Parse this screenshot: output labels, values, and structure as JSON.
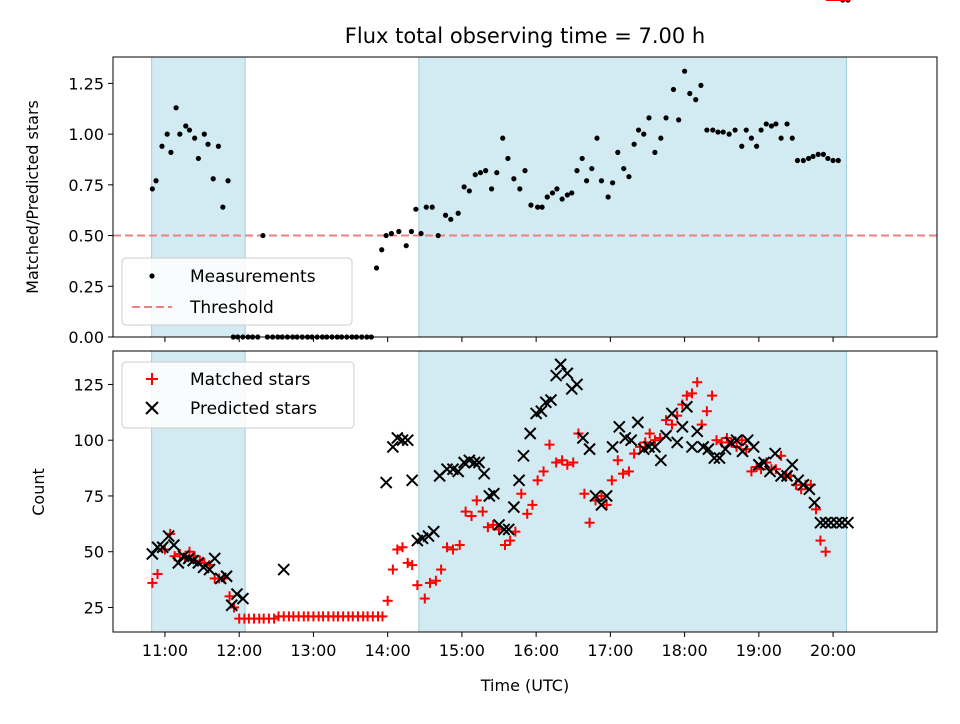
{
  "chart_data": [
    {
      "type": "scatter",
      "title": "Flux total observing time = 7.00 h",
      "ylabel": "Matched/Predicted stars",
      "xlabel": "",
      "xlim_hours": [
        10.3,
        21.4
      ],
      "ylim": [
        0,
        1.38
      ],
      "ytick_labels": [
        "0.00",
        "0.25",
        "0.50",
        "0.75",
        "1.00",
        "1.25"
      ],
      "ytick_values": [
        0,
        0.25,
        0.5,
        0.75,
        1.0,
        1.25
      ],
      "shaded_ranges_hours": [
        [
          10.82,
          12.08
        ],
        [
          14.42,
          20.18
        ]
      ],
      "threshold": 0.5,
      "legend": {
        "placement": "lower-left",
        "measurements": "Measurements",
        "threshold": "Threshold"
      },
      "colors": {
        "measurement": "#000000",
        "threshold": "#f08080",
        "shade": "#add8e6"
      },
      "series": [
        {
          "name": "Measurements",
          "t": [
            10.83,
            10.88,
            10.96,
            11.03,
            11.08,
            11.15,
            11.2,
            11.28,
            11.33,
            11.4,
            11.45,
            11.53,
            11.58,
            11.65,
            11.72,
            11.78,
            11.85,
            11.92,
            11.98,
            12.05,
            12.12,
            12.18,
            12.25,
            12.32,
            12.38,
            12.45,
            12.52,
            12.58,
            12.65,
            12.72,
            12.78,
            12.85,
            12.92,
            12.98,
            13.05,
            13.12,
            13.18,
            13.25,
            13.32,
            13.38,
            13.45,
            13.52,
            13.58,
            13.65,
            13.72,
            13.78,
            13.85,
            13.92,
            13.98,
            14.05,
            14.15,
            14.25,
            14.32,
            14.38,
            14.45,
            14.52,
            14.6,
            14.68,
            14.78,
            14.85,
            14.95,
            15.03,
            15.1,
            15.18,
            15.25,
            15.32,
            15.4,
            15.47,
            15.55,
            15.62,
            15.7,
            15.78,
            15.85,
            15.93,
            16.02,
            16.08,
            16.15,
            16.22,
            16.28,
            16.35,
            16.42,
            16.48,
            16.55,
            16.62,
            16.68,
            16.75,
            16.82,
            16.88,
            16.97,
            17.03,
            17.1,
            17.18,
            17.25,
            17.32,
            17.38,
            17.45,
            17.52,
            17.6,
            17.68,
            17.75,
            17.85,
            17.92,
            18.0,
            18.07,
            18.15,
            18.22,
            18.3,
            18.38,
            18.45,
            18.52,
            18.6,
            18.68,
            18.77,
            18.83,
            18.9,
            18.97,
            19.03,
            19.1,
            19.17,
            19.23,
            19.3,
            19.38,
            19.45,
            19.52,
            19.6,
            19.67,
            19.73,
            19.8,
            19.87,
            19.93,
            20.0,
            20.07,
            20.13,
            20.2
          ],
          "v": [
            0.73,
            0.77,
            0.94,
            1.0,
            0.91,
            1.13,
            1.0,
            1.04,
            1.02,
            0.98,
            0.88,
            1.0,
            0.95,
            0.78,
            0.94,
            0.64,
            0.77,
            0.0,
            0.0,
            0.0,
            0.0,
            0.0,
            0.0,
            0.5,
            0.0,
            0.0,
            0.0,
            0.0,
            0.0,
            0.0,
            0.0,
            0.0,
            0.0,
            0.0,
            0.0,
            0.0,
            0.0,
            0.0,
            0.0,
            0.0,
            0.0,
            0.0,
            0.0,
            0.0,
            0.0,
            0.0,
            0.34,
            0.43,
            0.5,
            0.51,
            0.52,
            0.45,
            0.52,
            0.63,
            0.51,
            0.64,
            0.64,
            0.5,
            0.6,
            0.58,
            0.61,
            0.74,
            0.72,
            0.8,
            0.81,
            0.82,
            0.73,
            0.81,
            0.98,
            0.88,
            0.78,
            0.73,
            0.82,
            0.65,
            0.64,
            0.64,
            0.69,
            0.71,
            0.73,
            0.68,
            0.7,
            0.71,
            0.82,
            0.88,
            0.77,
            0.83,
            0.98,
            0.77,
            0.69,
            0.76,
            0.91,
            0.83,
            0.79,
            0.95,
            1.02,
            1.0,
            1.08,
            0.91,
            0.98,
            1.08,
            1.22,
            1.07,
            1.31,
            1.2,
            1.17,
            1.24,
            1.02,
            1.02,
            1.01,
            1.01,
            1.0,
            1.02,
            0.94,
            1.02,
            0.98,
            0.94,
            1.02,
            1.05,
            1.04,
            1.05,
            0.98,
            1.05,
            0.98,
            0.87,
            0.87,
            0.88,
            0.89,
            0.9,
            0.9,
            0.88,
            0.87,
            0.87
          ]
        }
      ]
    },
    {
      "type": "scatter",
      "title": "",
      "xlabel": "Time (UTC)",
      "ylabel": "Count",
      "xlim_hours": [
        10.3,
        21.4
      ],
      "ylim": [
        14,
        140
      ],
      "ytick_labels": [
        "25",
        "50",
        "75",
        "100",
        "125"
      ],
      "ytick_values": [
        25,
        50,
        75,
        100,
        125
      ],
      "xtick_labels": [
        "11:00",
        "12:00",
        "13:00",
        "14:00",
        "15:00",
        "16:00",
        "17:00",
        "18:00",
        "19:00",
        "20:00"
      ],
      "xtick_values": [
        11,
        12,
        13,
        14,
        15,
        16,
        17,
        18,
        19,
        20
      ],
      "shaded_ranges_hours": [
        [
          10.82,
          12.08
        ],
        [
          14.42,
          20.18
        ]
      ],
      "legend": {
        "placement": "upper-left",
        "matched": "Matched stars",
        "predicted": "Predicted stars"
      },
      "colors": {
        "matched": "#ff0000",
        "predicted": "#000000",
        "shade": "#add8e6"
      },
      "series": [
        {
          "name": "Matched stars",
          "t": [
            10.83,
            10.9,
            11.0,
            11.07,
            11.13,
            11.2,
            11.27,
            11.33,
            11.4,
            11.47,
            11.53,
            11.6,
            11.67,
            11.73,
            11.8,
            11.87,
            11.93,
            12.0,
            12.07,
            12.13,
            12.2,
            12.27,
            12.33,
            12.4,
            12.47,
            12.53,
            12.6,
            12.67,
            12.73,
            12.8,
            12.87,
            12.93,
            13.0,
            13.07,
            13.13,
            13.2,
            13.27,
            13.33,
            13.4,
            13.47,
            13.53,
            13.6,
            13.67,
            13.73,
            13.8,
            13.87,
            13.93,
            14.0,
            14.07,
            14.13,
            14.2,
            14.27,
            14.33,
            14.4,
            14.5,
            14.57,
            14.65,
            14.72,
            14.8,
            14.88,
            14.97,
            15.05,
            15.13,
            15.2,
            15.28,
            15.35,
            15.42,
            15.5,
            15.58,
            15.65,
            15.72,
            15.8,
            15.88,
            15.95,
            16.02,
            16.1,
            16.18,
            16.27,
            16.35,
            16.42,
            16.5,
            16.57,
            16.65,
            16.72,
            16.8,
            16.88,
            16.95,
            17.02,
            17.1,
            17.17,
            17.25,
            17.32,
            17.4,
            17.47,
            17.53,
            17.6,
            17.67,
            17.75,
            17.83,
            17.9,
            17.97,
            18.03,
            18.1,
            18.17,
            18.23,
            18.3,
            18.37,
            18.43,
            18.5,
            18.57,
            18.63,
            18.7,
            18.77,
            18.83,
            18.9,
            18.97,
            19.03,
            19.1,
            19.17,
            19.23,
            19.3,
            19.37,
            19.43,
            19.5,
            19.57,
            19.63,
            19.7,
            19.77,
            19.83,
            19.9,
            19.97,
            20.03,
            20.1,
            20.17
          ],
          "v": [
            36,
            40,
            51,
            58,
            48,
            49,
            47,
            50,
            48,
            46,
            45,
            44,
            38,
            38,
            38,
            30,
            25,
            20,
            20,
            20,
            20,
            20,
            20,
            20,
            20,
            21,
            21,
            21,
            21,
            21,
            21,
            21,
            21,
            21,
            21,
            21,
            21,
            21,
            21,
            21,
            21,
            21,
            21,
            21,
            21,
            21,
            21,
            28,
            42,
            51,
            52,
            45,
            44,
            35,
            29,
            36,
            37,
            42,
            52,
            51,
            53,
            68,
            66,
            73,
            68,
            61,
            62,
            60,
            53,
            55,
            59,
            76,
            67,
            71,
            82,
            86,
            98,
            90,
            91,
            89,
            90,
            103,
            76,
            63,
            73,
            75,
            71,
            82,
            91,
            85,
            86,
            94,
            97,
            99,
            103,
            100,
            101,
            109,
            107,
            111,
            116,
            120,
            121,
            126,
            107,
            113,
            120,
            100,
            99,
            101,
            99,
            97,
            100,
            96,
            86,
            88,
            87,
            90,
            87,
            87,
            93,
            84,
            84,
            80,
            78,
            80,
            80,
            69,
            55,
            50
          ]
        },
        {
          "name": "Predicted stars",
          "t": [
            10.83,
            10.9,
            10.97,
            11.05,
            11.12,
            11.18,
            11.25,
            11.32,
            11.38,
            11.45,
            11.52,
            11.6,
            11.67,
            11.75,
            11.83,
            11.9,
            11.97,
            12.05,
            12.6,
            13.98,
            14.07,
            14.13,
            14.2,
            14.27,
            14.33,
            14.4,
            14.47,
            14.55,
            14.62,
            14.7,
            14.8,
            14.88,
            14.95,
            15.03,
            15.1,
            15.17,
            15.23,
            15.3,
            15.37,
            15.43,
            15.5,
            15.57,
            15.63,
            15.7,
            15.77,
            15.83,
            15.92,
            16.0,
            16.07,
            16.13,
            16.2,
            16.27,
            16.33,
            16.42,
            16.48,
            16.55,
            16.63,
            16.72,
            16.8,
            16.88,
            16.95,
            17.03,
            17.12,
            17.2,
            17.28,
            17.37,
            17.45,
            17.52,
            17.6,
            17.68,
            17.75,
            17.83,
            17.9,
            17.97,
            18.03,
            18.1,
            18.17,
            18.25,
            18.32,
            18.4,
            18.47,
            18.55,
            18.62,
            18.7,
            18.78,
            18.85,
            18.93,
            19.0,
            19.07,
            19.15,
            19.22,
            19.3,
            19.38,
            19.45,
            19.53,
            19.6,
            19.68,
            19.75,
            19.83,
            19.9,
            19.97,
            20.05,
            20.12,
            20.2
          ],
          "v": [
            49,
            52,
            52,
            57,
            53,
            45,
            48,
            47,
            46,
            45,
            43,
            42,
            47,
            38,
            39,
            26,
            31,
            29,
            42,
            81,
            97,
            101,
            100,
            100,
            82,
            55,
            56,
            57,
            59,
            84,
            87,
            87,
            86,
            90,
            91,
            90,
            90,
            85,
            75,
            76,
            62,
            60,
            60,
            70,
            82,
            93,
            103,
            112,
            113,
            117,
            118,
            129,
            134,
            130,
            123,
            125,
            101,
            96,
            75,
            71,
            75,
            97,
            106,
            101,
            100,
            108,
            96,
            97,
            97,
            91,
            102,
            112,
            99,
            106,
            115,
            97,
            104,
            97,
            96,
            92,
            92,
            96,
            99,
            100,
            95,
            100,
            97,
            89,
            90,
            86,
            94,
            84,
            84,
            89,
            82,
            80,
            78,
            72,
            63,
            63,
            63,
            63,
            63,
            63
          ]
        }
      ]
    }
  ]
}
